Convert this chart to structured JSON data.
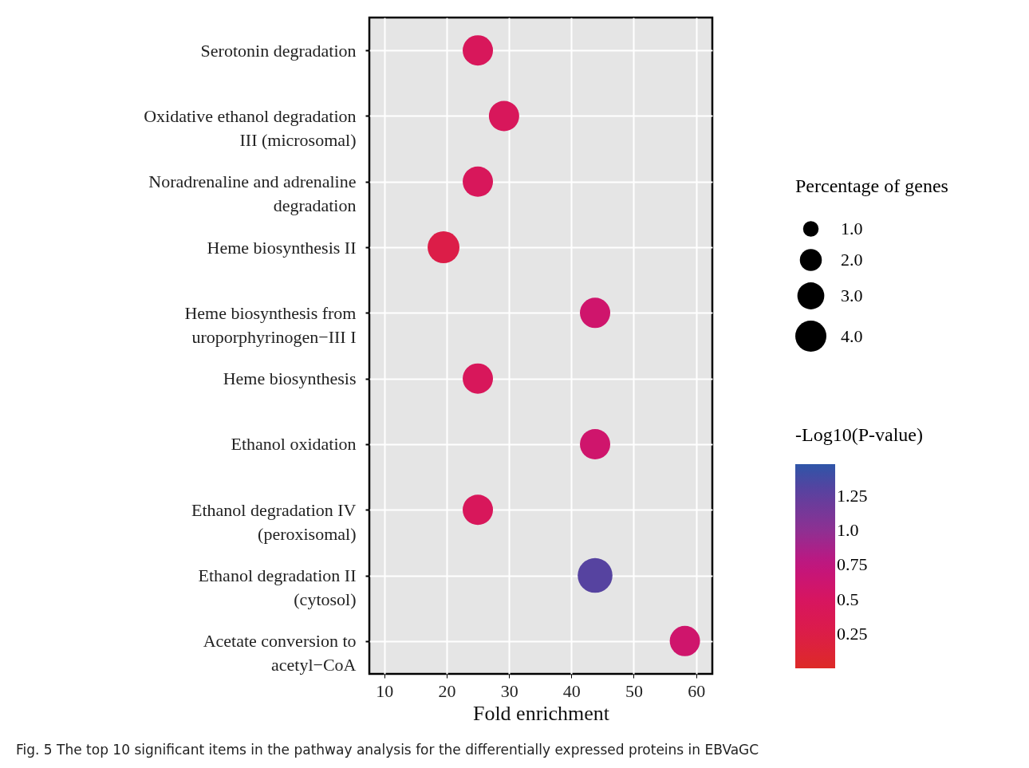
{
  "chart_data": {
    "type": "bubble",
    "xlabel": "Fold enrichment",
    "legend_title": "Percentage of genes",
    "clabel": "-Log10(P-value)",
    "categories": [
      "Serotonin degradation",
      "Oxidative ethanol degradation\nIII (microsomal)",
      "Noradrenaline and adrenaline\ndegradation",
      "Heme biosynthesis II",
      "Heme biosynthesis from\nuroporphyrinogen−III I",
      "Heme biosynthesis",
      "Ethanol oxidation",
      "Ethanol degradation IV\n(peroxisomal)",
      "Ethanol degradation II\n(cytosol)",
      "Acetate conversion to\nacetyl−CoA"
    ],
    "values": [
      25,
      29.2,
      25,
      19.5,
      43.8,
      25,
      43.8,
      25,
      43.8,
      58.2
    ],
    "sizes": [
      3.8,
      3.8,
      3.8,
      4.2,
      3.8,
      3.8,
      3.8,
      3.8,
      5.0,
      3.8
    ],
    "size_legend": [
      {
        "value": 1,
        "label": "1.0"
      },
      {
        "value": 2,
        "label": "2.0"
      },
      {
        "value": 3,
        "label": "3.0"
      },
      {
        "value": 4,
        "label": "4.0"
      }
    ],
    "cvalues": [
      0.45,
      0.45,
      0.45,
      0.25,
      0.6,
      0.45,
      0.6,
      0.45,
      1.3,
      0.6
    ],
    "clim": [
      0,
      1.48
    ],
    "orientation": "horizontal",
    "cticks": [
      0.25,
      0.5,
      0.75,
      {
        "value": 1,
        "label": "1.0"
      },
      1.25
    ],
    "xlim": [
      7.6,
      62.6
    ],
    "xticks": [
      10,
      20,
      30,
      40,
      50,
      60
    ],
    "grid": true,
    "annotations": [
      "Fig. 5  The top 10 significant items in the pathway analysis for the differentially expressed proteins in EBVaGC"
    ]
  }
}
